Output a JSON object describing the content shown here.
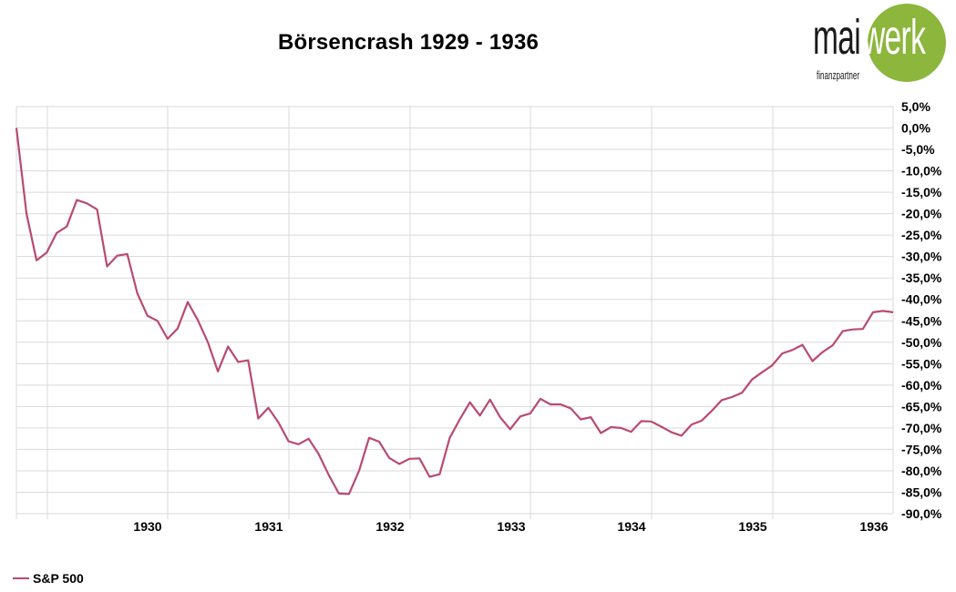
{
  "colors": {
    "line": "#b94a72",
    "grid": "#d9d9d9",
    "logo_green": "#8cb63c",
    "logo_text": "#1a1a1a"
  },
  "logo": {
    "left": "mai",
    "right": "werk",
    "sub": "finanzpartner"
  },
  "chart_data": {
    "type": "line",
    "title": "Börsencrash 1929 - 1936",
    "xlabel": "",
    "ylabel": "",
    "ylim": [
      -90,
      5
    ],
    "y_ticks": [
      5,
      0,
      -5,
      -10,
      -15,
      -20,
      -25,
      -30,
      -35,
      -40,
      -45,
      -50,
      -55,
      -60,
      -65,
      -70,
      -75,
      -80,
      -85,
      -90
    ],
    "y_tick_labels": [
      "5,0%",
      "0,0%",
      "-5,0%",
      "-10,0%",
      "-15,0%",
      "-20,0%",
      "-25,0%",
      "-30,0%",
      "-35,0%",
      "-40,0%",
      "-45,0%",
      "-50,0%",
      "-55,0%",
      "-60,0%",
      "-65,0%",
      "-70,0%",
      "-75,0%",
      "-80,0%",
      "-85,0%",
      "-90,0%"
    ],
    "y_axis_side": "right",
    "x_ticks": [
      "1930",
      "1931",
      "1932",
      "1933",
      "1934",
      "1935",
      "1936"
    ],
    "grid": true,
    "legend_position": "bottom-left",
    "series": [
      {
        "name": "S&P 500",
        "values": [
          0,
          -20,
          -30.9,
          -29.1,
          -24.5,
          -23,
          -16.8,
          -17.6,
          -19,
          -32.3,
          -29.8,
          -29.4,
          -38.6,
          -43.8,
          -45,
          -49.2,
          -46.8,
          -40.6,
          -44.8,
          -50,
          -56.8,
          -51,
          -54.6,
          -54.2,
          -67.8,
          -65.3,
          -68.7,
          -73.1,
          -73.8,
          -72.5,
          -76.1,
          -81,
          -85.3,
          -85.4,
          -80,
          -72.3,
          -73.2,
          -77,
          -78.4,
          -77.2,
          -77.1,
          -81.4,
          -80.8,
          -72.3,
          -68,
          -64,
          -67.1,
          -63.4,
          -67.5,
          -70.3,
          -67.3,
          -66.6,
          -63.2,
          -64.5,
          -64.5,
          -65.4,
          -68,
          -67.5,
          -71.2,
          -69.8,
          -70,
          -70.9,
          -68.4,
          -68.5,
          -69.7,
          -71,
          -71.8,
          -69.2,
          -68.3,
          -66,
          -63.5,
          -62.8,
          -61.8,
          -58.7,
          -57,
          -55.4,
          -52.6,
          -51.8,
          -50.6,
          -54.4,
          -52.3,
          -50.7,
          -47.4,
          -47,
          -46.9,
          -43,
          -42.7,
          -43
        ]
      }
    ]
  }
}
